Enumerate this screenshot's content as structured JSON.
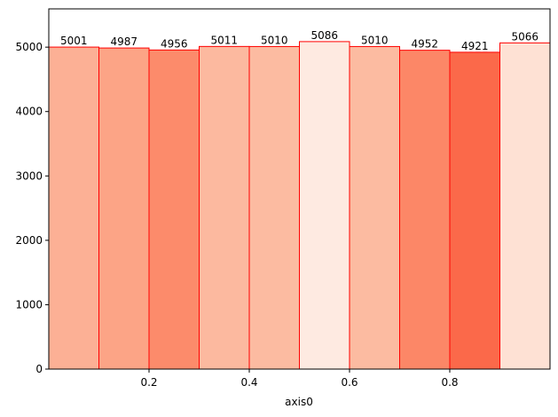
{
  "chart_data": {
    "type": "histogram",
    "bins": [
      0,
      0.1,
      0.2,
      0.3,
      0.4,
      0.5,
      0.6,
      0.7,
      0.8,
      0.9,
      1.0
    ],
    "values": [
      5001,
      4987,
      4956,
      5011,
      5010,
      5086,
      5010,
      4952,
      4921,
      5066
    ],
    "colors": [
      "#fcb095",
      "#fca486",
      "#fc8b6b",
      "#fcb99f",
      "#fcbba1",
      "#feeae1",
      "#fcbba1",
      "#fc8767",
      "#fb694a",
      "#fee1d4"
    ],
    "edgecolor": "#ff0000",
    "xlabel": "axis0",
    "xlim": [
      0,
      1.0
    ],
    "xticks": [
      0.2,
      0.4,
      0.6,
      0.8
    ],
    "ylim": [
      0,
      5594.6
    ],
    "yticks": [
      0,
      1000,
      2000,
      3000,
      4000,
      5000
    ]
  }
}
